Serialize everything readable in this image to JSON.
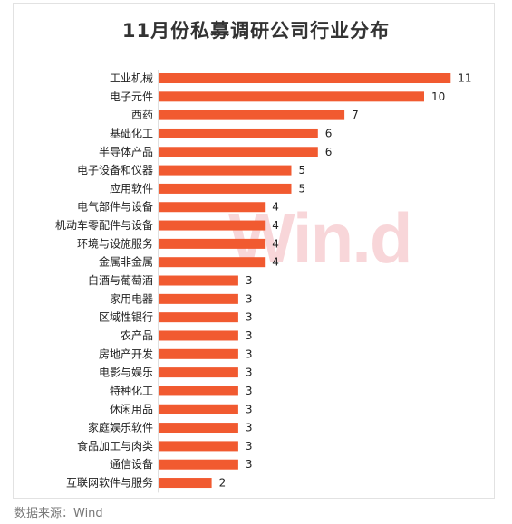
{
  "title": "11月份私募调研公司行业分布",
  "watermark": "Win.d",
  "source": "数据来源：Wind",
  "chart_data": {
    "type": "bar",
    "orientation": "horizontal",
    "title": "11月份私募调研公司行业分布",
    "bar_color": "#f15a30",
    "categories": [
      "工业机械",
      "电子元件",
      "西药",
      "基础化工",
      "半导体产品",
      "电子设备和仪器",
      "应用软件",
      "电气部件与设备",
      "机动车零配件与设备",
      "环境与设施服务",
      "金属非金属",
      "白酒与葡萄酒",
      "家用电器",
      "区域性银行",
      "农产品",
      "房地产开发",
      "电影与娱乐",
      "特种化工",
      "休闲用品",
      "家庭娱乐软件",
      "食品加工与肉类",
      "通信设备",
      "互联网软件与服务"
    ],
    "values": [
      11,
      10,
      7,
      6,
      6,
      5,
      5,
      4,
      4,
      4,
      4,
      3,
      3,
      3,
      3,
      3,
      3,
      3,
      3,
      3,
      3,
      3,
      2
    ],
    "xlim": [
      0,
      11
    ],
    "grid": false,
    "legend": false
  }
}
